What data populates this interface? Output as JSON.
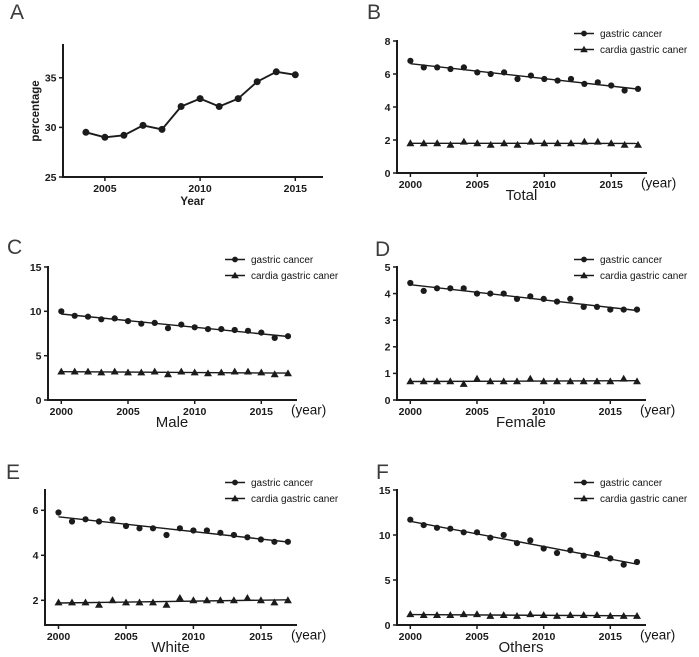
{
  "palette": {
    "ink": "#1b1b1b",
    "background": "#ffffff"
  },
  "chart_data": [
    {
      "panel_label": "A",
      "type": "line",
      "xlabel": "Year",
      "ylabel": "percentage",
      "x_suffix": "",
      "legend": false,
      "x": [
        2004,
        2005,
        2006,
        2007,
        2008,
        2009,
        2010,
        2011,
        2012,
        2013,
        2014,
        2015
      ],
      "series": [
        {
          "name": "percentage",
          "marker": "circle",
          "connect": true,
          "fit": false,
          "values": [
            29.5,
            29.0,
            29.2,
            30.2,
            29.8,
            32.1,
            32.9,
            32.1,
            32.9,
            34.6,
            35.6,
            35.3
          ]
        }
      ],
      "xlim": [
        2002.8,
        2016.4
      ],
      "ylim": [
        25,
        38.3
      ],
      "xticks": [
        2005,
        2010,
        2015
      ],
      "yticks": [
        25,
        30,
        35
      ]
    },
    {
      "panel_label": "B",
      "type": "scatter-fit",
      "xlabel": "Total",
      "ylabel": "",
      "x_suffix": "(year)",
      "legend": true,
      "x": [
        2000,
        2001,
        2002,
        2003,
        2004,
        2005,
        2006,
        2007,
        2008,
        2009,
        2010,
        2011,
        2012,
        2013,
        2014,
        2015,
        2016,
        2017
      ],
      "series": [
        {
          "name": "gastric cancer",
          "marker": "circle",
          "connect": false,
          "fit": true,
          "values": [
            6.8,
            6.4,
            6.4,
            6.3,
            6.4,
            6.1,
            6.0,
            6.1,
            5.7,
            5.9,
            5.7,
            5.6,
            5.7,
            5.4,
            5.5,
            5.3,
            5.0,
            5.1
          ]
        },
        {
          "name": "cardia gastric caner",
          "marker": "triangle",
          "connect": false,
          "fit": true,
          "values": [
            1.8,
            1.8,
            1.8,
            1.7,
            1.9,
            1.8,
            1.7,
            1.8,
            1.7,
            1.9,
            1.8,
            1.8,
            1.8,
            1.9,
            1.9,
            1.8,
            1.7,
            1.7
          ]
        }
      ],
      "xlim": [
        1999,
        2017.6
      ],
      "ylim": [
        0,
        8
      ],
      "xticks": [
        2000,
        2005,
        2010,
        2015
      ],
      "yticks": [
        0,
        2,
        4,
        6,
        8
      ]
    },
    {
      "panel_label": "C",
      "type": "scatter-fit",
      "xlabel": "Male",
      "ylabel": "",
      "x_suffix": "(year)",
      "legend": true,
      "x": [
        2000,
        2001,
        2002,
        2003,
        2004,
        2005,
        2006,
        2007,
        2008,
        2009,
        2010,
        2011,
        2012,
        2013,
        2014,
        2015,
        2016,
        2017
      ],
      "series": [
        {
          "name": "gastric cancer",
          "marker": "circle",
          "connect": false,
          "fit": true,
          "values": [
            10.0,
            9.5,
            9.4,
            9.1,
            9.2,
            8.9,
            8.6,
            8.7,
            8.1,
            8.5,
            8.2,
            8.0,
            8.0,
            7.9,
            7.8,
            7.6,
            7.0,
            7.2
          ]
        },
        {
          "name": "cardia gastric caner",
          "marker": "triangle",
          "connect": false,
          "fit": true,
          "values": [
            3.2,
            3.2,
            3.2,
            3.1,
            3.2,
            3.1,
            3.1,
            3.2,
            2.9,
            3.2,
            3.1,
            3.0,
            3.1,
            3.2,
            3.2,
            3.1,
            2.9,
            3.0
          ]
        }
      ],
      "xlim": [
        1999,
        2017.6
      ],
      "ylim": [
        0,
        15
      ],
      "xticks": [
        2000,
        2005,
        2010,
        2015
      ],
      "yticks": [
        0,
        5,
        10,
        15
      ]
    },
    {
      "panel_label": "D",
      "type": "scatter-fit",
      "xlabel": "Female",
      "ylabel": "",
      "x_suffix": "(year)",
      "legend": true,
      "x": [
        2000,
        2001,
        2002,
        2003,
        2004,
        2005,
        2006,
        2007,
        2008,
        2009,
        2010,
        2011,
        2012,
        2013,
        2014,
        2015,
        2016,
        2017
      ],
      "series": [
        {
          "name": "gastric cancer",
          "marker": "circle",
          "connect": false,
          "fit": true,
          "values": [
            4.4,
            4.1,
            4.2,
            4.2,
            4.2,
            4.0,
            4.0,
            4.0,
            3.8,
            3.9,
            3.8,
            3.7,
            3.8,
            3.5,
            3.5,
            3.4,
            3.4,
            3.4
          ]
        },
        {
          "name": "cardia gastric caner",
          "marker": "triangle",
          "connect": false,
          "fit": true,
          "values": [
            0.7,
            0.7,
            0.7,
            0.7,
            0.6,
            0.8,
            0.7,
            0.7,
            0.7,
            0.8,
            0.7,
            0.7,
            0.7,
            0.7,
            0.7,
            0.7,
            0.8,
            0.7
          ]
        }
      ],
      "xlim": [
        1999,
        2017.6
      ],
      "ylim": [
        0,
        5
      ],
      "xticks": [
        2000,
        2005,
        2010,
        2015
      ],
      "yticks": [
        0,
        1,
        2,
        3,
        4,
        5
      ]
    },
    {
      "panel_label": "E",
      "type": "scatter-fit",
      "xlabel": "White",
      "ylabel": "",
      "x_suffix": "(year)",
      "legend": true,
      "x": [
        2000,
        2001,
        2002,
        2003,
        2004,
        2005,
        2006,
        2007,
        2008,
        2009,
        2010,
        2011,
        2012,
        2013,
        2014,
        2015,
        2016,
        2017
      ],
      "series": [
        {
          "name": "gastric cancer",
          "marker": "circle",
          "connect": false,
          "fit": true,
          "values": [
            5.9,
            5.5,
            5.6,
            5.5,
            5.6,
            5.3,
            5.2,
            5.2,
            4.9,
            5.2,
            5.1,
            5.1,
            5.0,
            4.9,
            4.8,
            4.7,
            4.6,
            4.6
          ]
        },
        {
          "name": "cardia gastric caner",
          "marker": "triangle",
          "connect": false,
          "fit": true,
          "values": [
            1.9,
            1.9,
            1.9,
            1.8,
            2.0,
            1.9,
            1.9,
            1.9,
            1.8,
            2.1,
            2.0,
            2.0,
            2.0,
            2.0,
            2.1,
            2.0,
            1.9,
            2.0
          ]
        }
      ],
      "xlim": [
        1999,
        2017.6
      ],
      "ylim": [
        0.9,
        6.9
      ],
      "xticks": [
        2000,
        2005,
        2010,
        2015
      ],
      "yticks": [
        2,
        4,
        6
      ]
    },
    {
      "panel_label": "F",
      "type": "scatter-fit",
      "xlabel": "Others",
      "ylabel": "",
      "x_suffix": "(year)",
      "legend": true,
      "x": [
        2000,
        2001,
        2002,
        2003,
        2004,
        2005,
        2006,
        2007,
        2008,
        2009,
        2010,
        2011,
        2012,
        2013,
        2014,
        2015,
        2016,
        2017
      ],
      "series": [
        {
          "name": "gastric cancer",
          "marker": "circle",
          "connect": false,
          "fit": true,
          "values": [
            11.7,
            11.1,
            10.8,
            10.7,
            10.3,
            10.3,
            9.7,
            10.0,
            9.1,
            9.4,
            8.5,
            8.0,
            8.3,
            7.7,
            7.9,
            7.4,
            6.7,
            7.0
          ]
        },
        {
          "name": "cardia gastric caner",
          "marker": "triangle",
          "connect": false,
          "fit": true,
          "values": [
            1.2,
            1.1,
            1.1,
            1.1,
            1.2,
            1.2,
            1.0,
            1.1,
            1.0,
            1.2,
            1.1,
            1.0,
            1.1,
            1.1,
            1.1,
            1.0,
            1.0,
            1.0
          ]
        }
      ],
      "xlim": [
        1999,
        2017.6
      ],
      "ylim": [
        0,
        15
      ],
      "xticks": [
        2000,
        2005,
        2010,
        2015
      ],
      "yticks": [
        0,
        5,
        10,
        15
      ]
    }
  ]
}
